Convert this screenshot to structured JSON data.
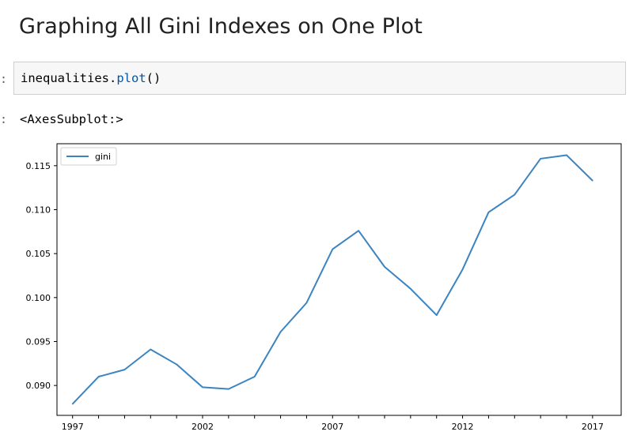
{
  "heading": "Graphing All Gini Indexes on One Plot",
  "code_cell": {
    "prompt": ":",
    "code_object": "inequalities",
    "code_dot": ".",
    "code_method": "plot",
    "code_parens": "()"
  },
  "output": {
    "prompt": ":",
    "text": "<AxesSubplot:>"
  },
  "chart_data": {
    "type": "line",
    "x": [
      1997,
      1998,
      1999,
      2000,
      2001,
      2002,
      2003,
      2004,
      2005,
      2006,
      2007,
      2008,
      2009,
      2010,
      2011,
      2012,
      2013,
      2014,
      2015,
      2016,
      2017
    ],
    "series": [
      {
        "name": "gini",
        "color": "#3b84c2",
        "values": [
          0.0879,
          0.091,
          0.0918,
          0.0941,
          0.0924,
          0.0898,
          0.0896,
          0.091,
          0.0961,
          0.0994,
          0.1055,
          0.1076,
          0.1035,
          0.101,
          0.098,
          0.1032,
          0.1097,
          0.1117,
          0.1158,
          0.1162,
          0.1133
        ]
      }
    ],
    "xlim": [
      1996.4,
      2018.1
    ],
    "ylim": [
      0.0866,
      0.1175
    ],
    "x_ticks": [
      1997,
      1998,
      1999,
      2000,
      2001,
      2002,
      2003,
      2004,
      2005,
      2006,
      2007,
      2008,
      2009,
      2010,
      2011,
      2012,
      2013,
      2014,
      2015,
      2016,
      2017
    ],
    "x_tick_labels": [
      "1997",
      "",
      "",
      "",
      "",
      "2002",
      "",
      "",
      "",
      "",
      "2007",
      "",
      "",
      "",
      "",
      "2012",
      "",
      "",
      "",
      "",
      "2017"
    ],
    "y_ticks": [
      0.09,
      0.095,
      0.1,
      0.105,
      0.11,
      0.115
    ],
    "y_tick_labels": [
      "0.090",
      "0.095",
      "0.100",
      "0.105",
      "0.110",
      "0.115"
    ],
    "legend": "upper left",
    "grid": false
  }
}
